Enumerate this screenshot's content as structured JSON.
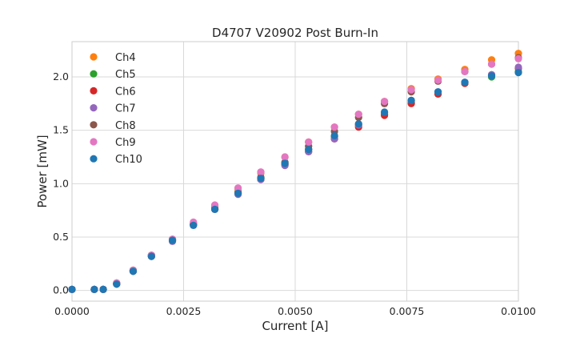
{
  "chart_data": {
    "type": "scatter",
    "title": "D4707 V20902 Post Burn-In",
    "xlabel": "Current [A]",
    "ylabel": "Power [mW]",
    "xlim": [
      0.0,
      0.01
    ],
    "ylim": [
      -0.1,
      2.33
    ],
    "x_ticks": [
      {
        "value": 0.0,
        "label": "0.0000"
      },
      {
        "value": 0.0025,
        "label": "0.0025"
      },
      {
        "value": 0.005,
        "label": "0.0050"
      },
      {
        "value": 0.0075,
        "label": "0.0075"
      },
      {
        "value": 0.01,
        "label": "0.0100"
      }
    ],
    "y_ticks": [
      {
        "value": 0.0,
        "label": "0.0"
      },
      {
        "value": 0.5,
        "label": "0.5"
      },
      {
        "value": 1.0,
        "label": "1.0"
      },
      {
        "value": 1.5,
        "label": "1.5"
      },
      {
        "value": 2.0,
        "label": "2.0"
      }
    ],
    "grid": true,
    "legend_position": "top-left",
    "x": [
      0.0,
      0.0005,
      0.0007,
      0.001,
      0.00137,
      0.00178,
      0.00225,
      0.00272,
      0.0032,
      0.00372,
      0.00423,
      0.00477,
      0.0053,
      0.00588,
      0.00642,
      0.007,
      0.0076,
      0.0082,
      0.0088,
      0.0094,
      0.01
    ],
    "series": [
      {
        "name": "Ch4",
        "color": "#ff7f0e",
        "values": [
          0.01,
          0.01,
          0.01,
          0.07,
          0.19,
          0.33,
          0.48,
          0.63,
          0.79,
          0.95,
          1.1,
          1.25,
          1.39,
          1.53,
          1.65,
          1.77,
          1.89,
          1.98,
          2.07,
          2.16,
          2.22
        ]
      },
      {
        "name": "Ch5",
        "color": "#2ca02c",
        "values": [
          0.01,
          0.01,
          0.01,
          0.06,
          0.18,
          0.32,
          0.47,
          0.62,
          0.77,
          0.92,
          1.05,
          1.19,
          1.32,
          1.44,
          1.55,
          1.65,
          1.76,
          1.84,
          1.94,
          2.0,
          2.05
        ]
      },
      {
        "name": "Ch6",
        "color": "#d62728",
        "values": [
          0.01,
          0.01,
          0.01,
          0.06,
          0.18,
          0.32,
          0.47,
          0.62,
          0.76,
          0.91,
          1.04,
          1.18,
          1.3,
          1.42,
          1.53,
          1.64,
          1.75,
          1.84,
          1.94,
          2.02,
          2.08
        ]
      },
      {
        "name": "Ch7",
        "color": "#9467bd",
        "values": [
          0.01,
          0.01,
          0.01,
          0.06,
          0.18,
          0.32,
          0.46,
          0.61,
          0.76,
          0.9,
          1.04,
          1.17,
          1.3,
          1.42,
          1.55,
          1.67,
          1.78,
          1.86,
          1.95,
          2.02,
          2.09
        ]
      },
      {
        "name": "Ch8",
        "color": "#8c564b",
        "values": [
          0.01,
          0.01,
          0.01,
          0.07,
          0.19,
          0.33,
          0.47,
          0.62,
          0.77,
          0.92,
          1.06,
          1.2,
          1.35,
          1.49,
          1.62,
          1.75,
          1.86,
          1.96,
          2.05,
          2.12,
          2.18
        ]
      },
      {
        "name": "Ch9",
        "color": "#e377c2",
        "values": [
          0.01,
          0.01,
          0.01,
          0.07,
          0.19,
          0.33,
          0.48,
          0.64,
          0.8,
          0.96,
          1.11,
          1.25,
          1.39,
          1.53,
          1.65,
          1.77,
          1.88,
          1.97,
          2.05,
          2.12,
          2.17
        ]
      },
      {
        "name": "Ch10",
        "color": "#1f77b4",
        "values": [
          0.01,
          0.01,
          0.01,
          0.06,
          0.18,
          0.32,
          0.47,
          0.61,
          0.76,
          0.91,
          1.05,
          1.19,
          1.32,
          1.45,
          1.56,
          1.67,
          1.78,
          1.86,
          1.95,
          2.01,
          2.04
        ]
      }
    ]
  }
}
